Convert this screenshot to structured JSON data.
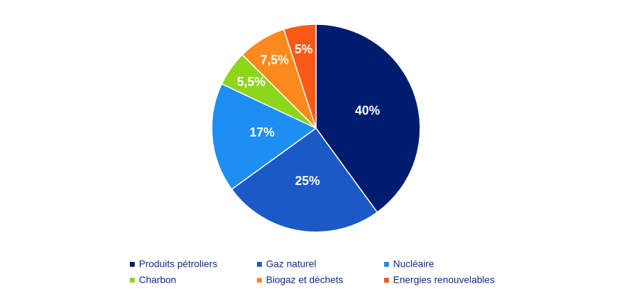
{
  "chart_data": {
    "type": "pie",
    "categories": [
      "Produits pétroliers",
      "Gaz naturel",
      "Nucléaire",
      "Charbon",
      "Biogaz et déchets",
      "Energies renouvelables"
    ],
    "values": [
      40,
      25,
      17,
      5.5,
      7.5,
      5
    ],
    "value_labels": [
      "40%",
      "25%",
      "17%",
      "5,5%",
      "7,5%",
      "5%"
    ],
    "colors": [
      "#001c6e",
      "#1b5ac6",
      "#1e8ff2",
      "#8dd61c",
      "#fb8a1e",
      "#fb5a19"
    ],
    "legend": "bottom"
  }
}
